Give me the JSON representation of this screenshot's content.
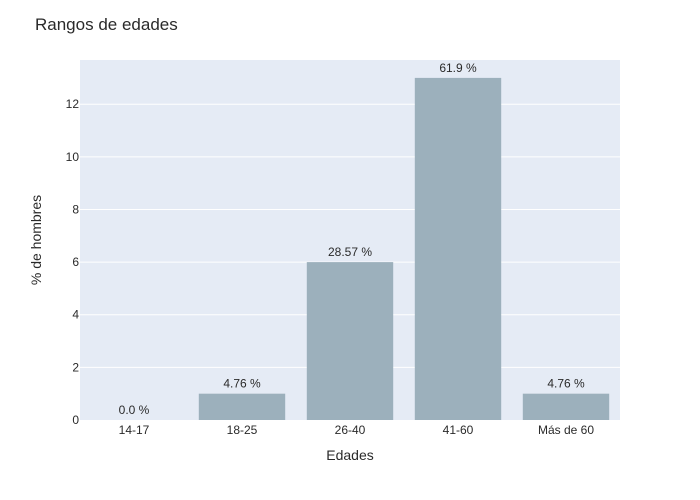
{
  "chart_data": {
    "type": "bar",
    "title": "Rangos de edades",
    "xlabel": "Edades",
    "ylabel": "% de hombres",
    "categories": [
      "14-17",
      "18-25",
      "26-40",
      "41-60",
      "Más de 60"
    ],
    "values": [
      0,
      1,
      6,
      13,
      1
    ],
    "data_labels": [
      "0.0 %",
      "4.76 %",
      "28.57 %",
      "61.9 %",
      "4.76 %"
    ],
    "ylim": [
      0,
      13.68
    ],
    "yticks": [
      0,
      2,
      4,
      6,
      8,
      10,
      12
    ],
    "grid": true,
    "legend": false,
    "colors": {
      "bar": "#9cb0bc",
      "plot_background": "#e5ebf5",
      "grid": "#ffffff"
    }
  }
}
